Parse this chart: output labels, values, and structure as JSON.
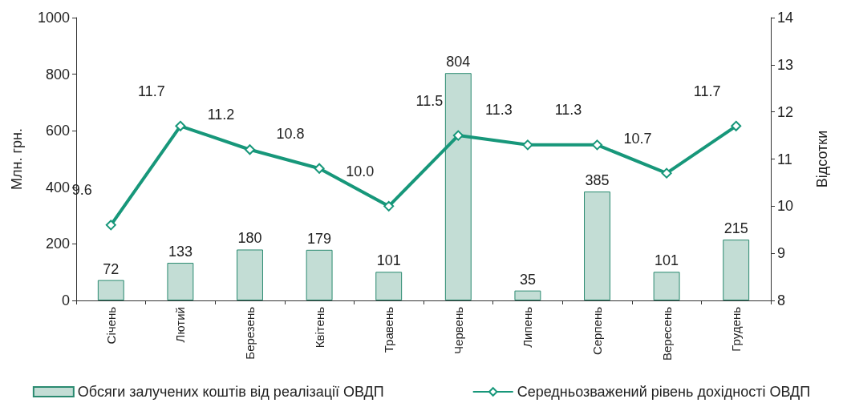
{
  "chart_data": {
    "type": "bar",
    "ylabel": "Млн. грн.",
    "y2label": "Відсотки",
    "categories": [
      "Січень",
      "Лютий",
      "Березень",
      "Квітень",
      "Травень",
      "Червень",
      "Липень",
      "Серпень",
      "Вересень",
      "Грудень"
    ],
    "series": [
      {
        "name": "Обсяги залучених коштів від реалізації ОВДП",
        "color": "#c3ddd5",
        "values": [
          72,
          133,
          180,
          179,
          101,
          804,
          35,
          385,
          101,
          215
        ],
        "value_labels": [
          "72",
          "133",
          "180",
          "179",
          "101",
          "804",
          "35",
          "385",
          "101",
          "215"
        ]
      },
      {
        "name": "Середньозважений рівень дохідності ОВДП",
        "type": "line",
        "axis": "y2",
        "color": "#17977a",
        "marker": "diamond",
        "values": [
          9.6,
          11.7,
          11.2,
          10.8,
          10.0,
          11.5,
          11.3,
          11.3,
          10.7,
          11.7
        ],
        "value_labels": [
          "9.6",
          "11.7",
          "11.2",
          "10.8",
          "10.0",
          "11.5",
          "11.3",
          "11.3",
          "10.7",
          "11.7"
        ]
      }
    ],
    "ylim": [
      0,
      1000
    ],
    "yticks": [
      0,
      200,
      400,
      600,
      800,
      1000
    ],
    "y2lim": [
      8,
      14
    ],
    "y2ticks": [
      8,
      9,
      10,
      11,
      12,
      13,
      14
    ],
    "grid": false,
    "legend": "bottom"
  }
}
